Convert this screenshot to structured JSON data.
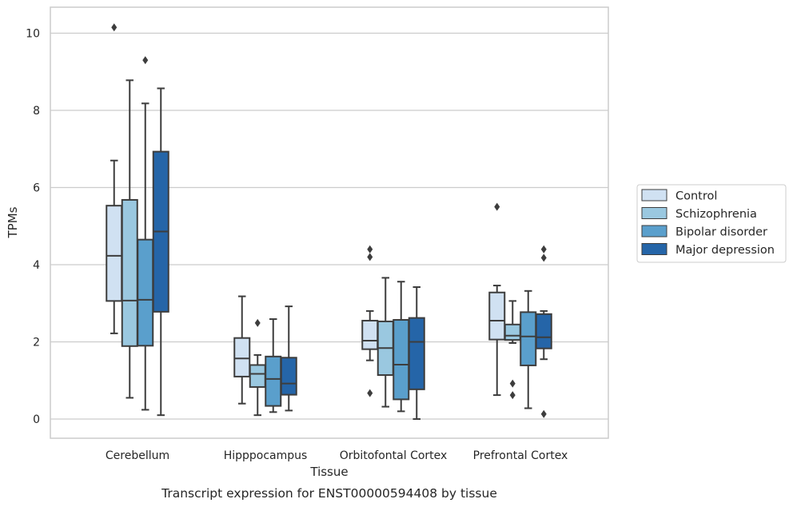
{
  "chart_data": {
    "type": "box",
    "caption": "Transcript expression for ENST00000594408 by tissue",
    "xlabel": "Tissue",
    "ylabel": "TPMs",
    "ylim": [
      -0.5,
      10.65
    ],
    "yticks": [
      0,
      2,
      4,
      6,
      8,
      10
    ],
    "grid": "horizontal",
    "legend_position": "right",
    "categories": [
      "Cerebellum",
      "Hipppocampus",
      "Orbitofontal Cortex",
      "Prefrontal Cortex"
    ],
    "series": [
      {
        "name": "Control",
        "color": "#d0e1f2",
        "boxes": [
          {
            "whisker_low": 2.22,
            "q1": 3.06,
            "median": 4.23,
            "q3": 5.53,
            "whisker_high": 6.7,
            "outliers": [
              10.15
            ]
          },
          {
            "whisker_low": 0.4,
            "q1": 1.1,
            "median": 1.57,
            "q3": 2.1,
            "whisker_high": 3.18,
            "outliers": []
          },
          {
            "whisker_low": 1.52,
            "q1": 1.81,
            "median": 2.03,
            "q3": 2.55,
            "whisker_high": 2.8,
            "outliers": [
              4.4,
              4.2,
              0.67
            ]
          },
          {
            "whisker_low": 0.62,
            "q1": 2.06,
            "median": 2.55,
            "q3": 3.28,
            "whisker_high": 3.46,
            "outliers": [
              5.5
            ]
          }
        ]
      },
      {
        "name": "Schizophrenia",
        "color": "#9ac8e0",
        "boxes": [
          {
            "whisker_low": 0.55,
            "q1": 1.89,
            "median": 3.07,
            "q3": 5.68,
            "whisker_high": 8.78,
            "outliers": []
          },
          {
            "whisker_low": 0.1,
            "q1": 0.83,
            "median": 1.17,
            "q3": 1.4,
            "whisker_high": 1.66,
            "outliers": [
              2.49
            ]
          },
          {
            "whisker_low": 0.32,
            "q1": 1.14,
            "median": 1.84,
            "q3": 2.53,
            "whisker_high": 3.66,
            "outliers": []
          },
          {
            "whisker_low": 1.97,
            "q1": 2.05,
            "median": 2.16,
            "q3": 2.45,
            "whisker_high": 3.06,
            "outliers": [
              0.92,
              0.62
            ]
          }
        ]
      },
      {
        "name": "Bipolar disorder",
        "color": "#5a9fcc",
        "boxes": [
          {
            "whisker_low": 0.24,
            "q1": 1.9,
            "median": 3.09,
            "q3": 4.65,
            "whisker_high": 8.18,
            "outliers": [
              9.3
            ]
          },
          {
            "whisker_low": 0.18,
            "q1": 0.34,
            "median": 1.04,
            "q3": 1.62,
            "whisker_high": 2.59,
            "outliers": []
          },
          {
            "whisker_low": 0.2,
            "q1": 0.51,
            "median": 1.41,
            "q3": 2.57,
            "whisker_high": 3.56,
            "outliers": []
          },
          {
            "whisker_low": 0.28,
            "q1": 1.39,
            "median": 2.14,
            "q3": 2.77,
            "whisker_high": 3.32,
            "outliers": []
          }
        ]
      },
      {
        "name": "Major depression",
        "color": "#2565a8",
        "boxes": [
          {
            "whisker_low": 0.1,
            "q1": 2.78,
            "median": 4.86,
            "q3": 6.93,
            "whisker_high": 8.57,
            "outliers": []
          },
          {
            "whisker_low": 0.22,
            "q1": 0.63,
            "median": 0.92,
            "q3": 1.59,
            "whisker_high": 2.92,
            "outliers": []
          },
          {
            "whisker_low": 0.0,
            "q1": 0.77,
            "median": 2.0,
            "q3": 2.62,
            "whisker_high": 3.42,
            "outliers": []
          },
          {
            "whisker_low": 1.55,
            "q1": 1.83,
            "median": 2.12,
            "q3": 2.72,
            "whisker_high": 2.8,
            "outliers": [
              4.4,
              4.18,
              0.13
            ]
          }
        ]
      }
    ]
  }
}
